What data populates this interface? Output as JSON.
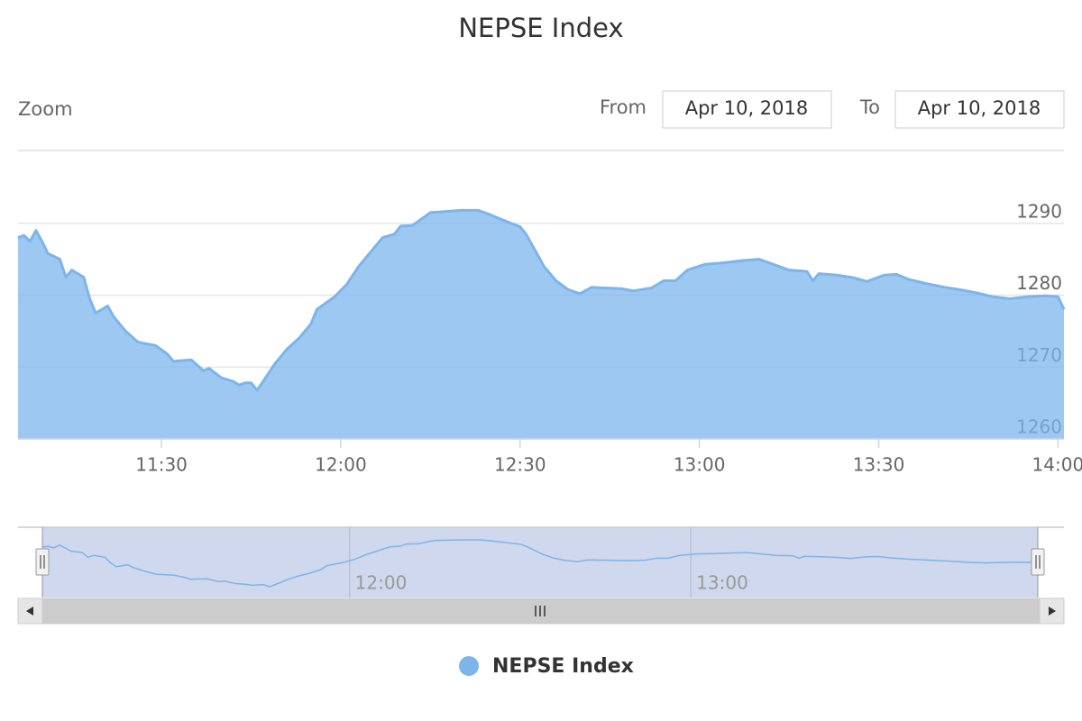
{
  "chart_data": {
    "type": "area",
    "title": "NEPSE Index",
    "range_selector": {
      "label": "Zoom",
      "from_label": "From",
      "from": "Apr 10, 2018",
      "to_label": "To",
      "to": "Apr 10, 2018"
    },
    "x": [
      "11:06",
      "11:07",
      "11:08",
      "11:09",
      "11:10",
      "11:11",
      "11:13",
      "11:14",
      "11:15",
      "11:17",
      "11:18",
      "11:19",
      "11:21",
      "11:22",
      "11:24",
      "11:26",
      "11:27",
      "11:29",
      "11:31",
      "11:32",
      "11:35",
      "11:37",
      "11:38",
      "11:40",
      "11:42",
      "11:43",
      "11:44",
      "11:45",
      "11:46",
      "11:47",
      "11:49",
      "11:50",
      "11:51",
      "11:53",
      "11:55",
      "11:56",
      "11:59",
      "12:01",
      "12:03",
      "12:05",
      "12:07",
      "12:09",
      "12:10",
      "12:12",
      "12:15",
      "12:17",
      "12:20",
      "12:23",
      "12:25",
      "12:27",
      "12:30",
      "12:31",
      "12:33",
      "12:34",
      "12:36",
      "12:38",
      "12:40",
      "12:42",
      "12:44",
      "12:47",
      "12:49",
      "12:52",
      "12:54",
      "12:56",
      "12:58",
      "13:01",
      "13:04",
      "13:07",
      "13:10",
      "13:12",
      "13:15",
      "13:18",
      "13:19",
      "13:20",
      "13:23",
      "13:26",
      "13:28",
      "13:31",
      "13:33",
      "13:35",
      "13:38",
      "13:41",
      "13:44",
      "13:47",
      "13:49",
      "13:52",
      "13:55",
      "13:58",
      "14:00",
      "14:01"
    ],
    "series": [
      {
        "name": "NEPSE Index",
        "color": "#7cb5ec",
        "values": [
          1288,
          1288.3,
          1287.5,
          1289,
          1287.5,
          1285.8,
          1285,
          1282.5,
          1283.5,
          1282.5,
          1279.5,
          1277.5,
          1278.5,
          1277,
          1275,
          1273.5,
          1273.3,
          1273,
          1271.8,
          1270.8,
          1271,
          1269.5,
          1269.8,
          1268.5,
          1268,
          1267.5,
          1267.8,
          1267.8,
          1266.8,
          1268,
          1270.5,
          1271.5,
          1272.5,
          1274,
          1276,
          1278,
          1279.8,
          1281.5,
          1284,
          1286,
          1288,
          1288.5,
          1289.6,
          1289.7,
          1291.5,
          1291.6,
          1291.8,
          1291.8,
          1291.2,
          1290.5,
          1289.5,
          1288.5,
          1285.5,
          1284,
          1282,
          1280.8,
          1280.2,
          1281.1,
          1281,
          1280.9,
          1280.6,
          1281,
          1282,
          1282,
          1283.5,
          1284.3,
          1284.5,
          1284.8,
          1285,
          1284.4,
          1283.5,
          1283.3,
          1282,
          1283,
          1282.8,
          1282.4,
          1281.9,
          1282.8,
          1282.9,
          1282.2,
          1281.6,
          1281.1,
          1280.7,
          1280.2,
          1279.8,
          1279.5,
          1279.8,
          1279.9,
          1279.8,
          1278
        ]
      }
    ],
    "xlim": [
      "11:06",
      "14:01"
    ],
    "xticks": [
      "11:30",
      "12:00",
      "12:30",
      "13:00",
      "13:30",
      "14:00"
    ],
    "ylim": [
      1260,
      1300
    ],
    "yticks": [
      1260,
      1270,
      1280,
      1290
    ],
    "grid": true,
    "navigator": {
      "xticks": [
        "12:00",
        "13:00"
      ]
    },
    "legend": "bottom"
  }
}
